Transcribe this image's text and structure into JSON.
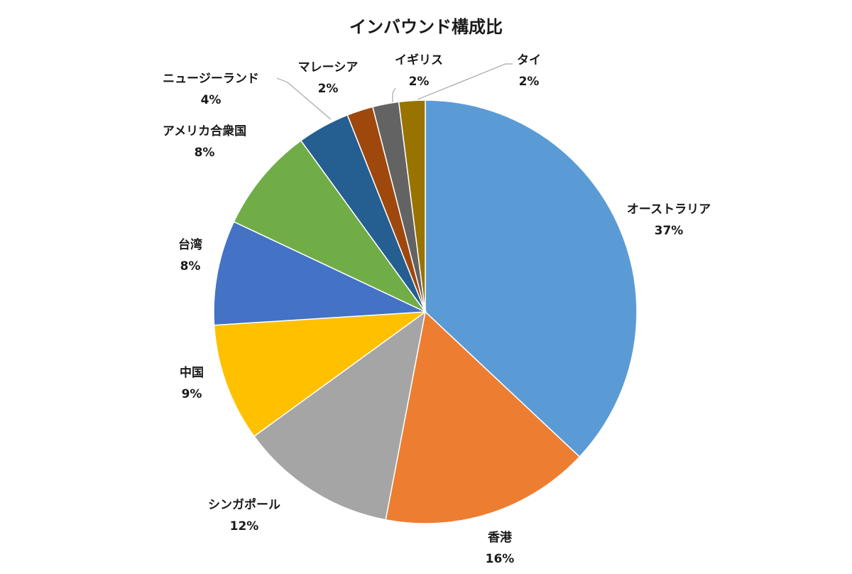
{
  "chart_data": {
    "type": "pie",
    "title": "インバウンド構成比",
    "start_angle_deg": 0,
    "direction": "clockwise",
    "slices": [
      {
        "label": "オーストラリア",
        "value": 37,
        "value_label": "37%",
        "color": "#5B9BD5"
      },
      {
        "label": "香港",
        "value": 16,
        "value_label": "16%",
        "color": "#ED7D31"
      },
      {
        "label": "シンガポール",
        "value": 12,
        "value_label": "12%",
        "color": "#A5A5A5"
      },
      {
        "label": "中国",
        "value": 9,
        "value_label": "9%",
        "color": "#FFC000"
      },
      {
        "label": "台湾",
        "value": 8,
        "value_label": "8%",
        "color": "#4472C4"
      },
      {
        "label": "アメリカ合衆国",
        "value": 8,
        "value_label": "8%",
        "color": "#70AD47"
      },
      {
        "label": "ニュージーランド",
        "value": 4,
        "value_label": "4%",
        "color": "#255E91"
      },
      {
        "label": "マレーシア",
        "value": 2,
        "value_label": "2%",
        "color": "#9E480E"
      },
      {
        "label": "イギリス",
        "value": 2,
        "value_label": "2%",
        "color": "#636363"
      },
      {
        "label": "タイ",
        "value": 2,
        "value_label": "2%",
        "color": "#997300"
      }
    ]
  }
}
